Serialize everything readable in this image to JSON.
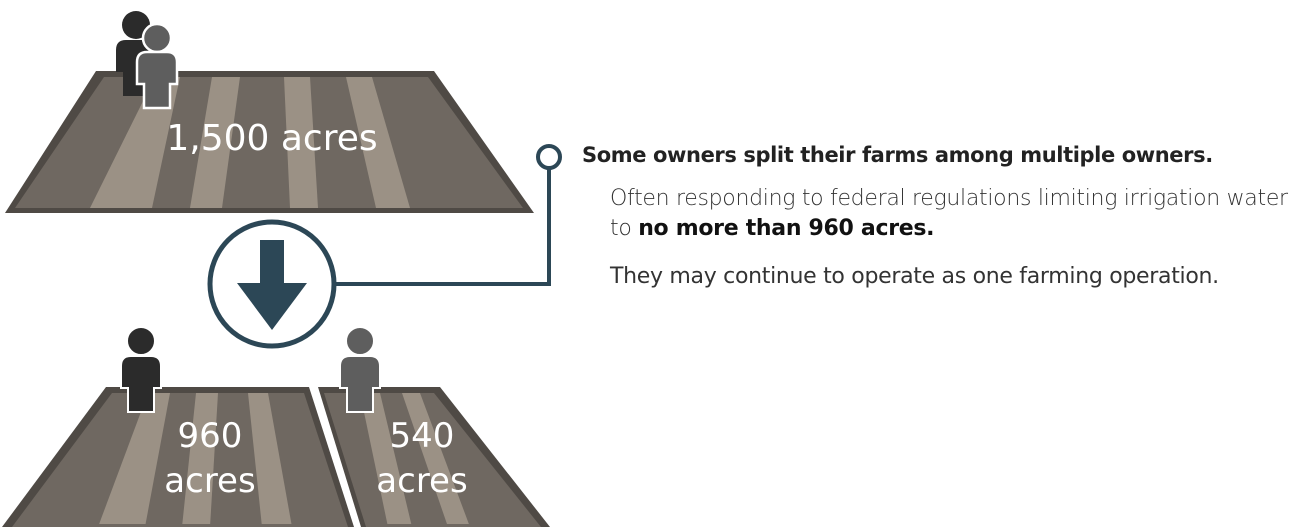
{
  "original_farm": {
    "label": "1,500 acres",
    "owners": 2
  },
  "split_farms": [
    {
      "number": "960",
      "unit": "acres",
      "owners": 1
    },
    {
      "number": "540",
      "unit": "acres",
      "owners": 1
    }
  ],
  "arrow_icon": "arrow-down-icon",
  "callout": {
    "heading": "Some owners split their farms among multiple owners.",
    "body_lead": "Often responding to federal regulations limiting irrigation water to ",
    "body_emphasis": "no more than 960 acres.",
    "note": "They may continue to operate as one farming operation."
  },
  "colors": {
    "field_frame": "#4f4a45",
    "field_dark_stripe": "#6f6861",
    "field_light_stripe": "#9b9185",
    "arrow": "#2c4756",
    "owner_dark": "#2b2b2b",
    "owner_gray": "#5e5e5e"
  }
}
